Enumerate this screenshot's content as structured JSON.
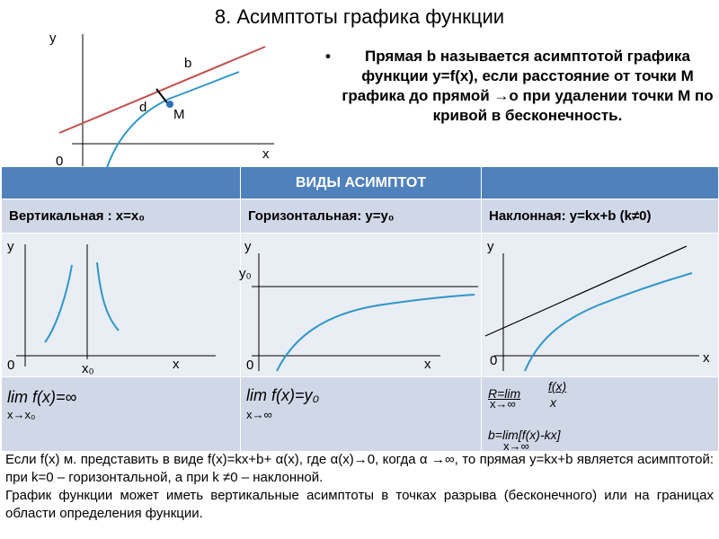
{
  "title": "8. Асимптоты графика функции",
  "top_graph": {
    "y": "y",
    "x": "x",
    "origin": "0",
    "b": "b",
    "d": "d",
    "m": "M"
  },
  "definition": {
    "bullet": "•",
    "text": "Прямая  b называется асимптотой графика функции y=f(x), если расстояние от точки M графика до прямой  →o при удалении точки M по кривой в бесконечность."
  },
  "table": {
    "header": "ВИДЫ АСИМПТОТ",
    "types": [
      "Вертикальная : x=x₀",
      "Горизонтальная: y=y₀",
      "Наклонная: y=kx+b (k≠0)"
    ],
    "graphs": {
      "vertical": {
        "y": "y",
        "x": "x",
        "origin": "0",
        "x0": "x₀"
      },
      "horizontal": {
        "y": "y",
        "x": "x",
        "origin": "0",
        "y0": "y₀"
      },
      "oblique": {
        "y": "y",
        "x": "x",
        "origin": "0"
      }
    },
    "limits": {
      "vertical": {
        "expr": "lim  f(x)=∞",
        "sub": "x→x₀"
      },
      "horizontal": {
        "expr": "lim  f(x)=y₀",
        "sub": "x→∞"
      },
      "oblique": {
        "k_expr": "R=lim",
        "k_num": "f(x)",
        "k_den": "x",
        "k_sub": "x→∞",
        "b_expr": "b=lim[f(x)-kx]",
        "b_sub": "x→∞"
      }
    }
  },
  "bottom": {
    "p1": "Если f(x) м. представить в виде f(x)=kx+b+ α(x), где α(x)→0, когда α →∞, то прямая y=kx+b является асимптотой: при k=0 – горизонтальной, а при k ≠0 – наклонной.",
    "p2": "График функции может иметь вертикальные асимптоты в точках разрыва (бесконечного) или на границах области определения функции."
  },
  "colors": {
    "header": "#4f81bd",
    "row_dark": "#d0d8e8",
    "row_light": "#e9edf4",
    "curve": "#2e97c8",
    "asymptote_red": "#c0504d"
  }
}
